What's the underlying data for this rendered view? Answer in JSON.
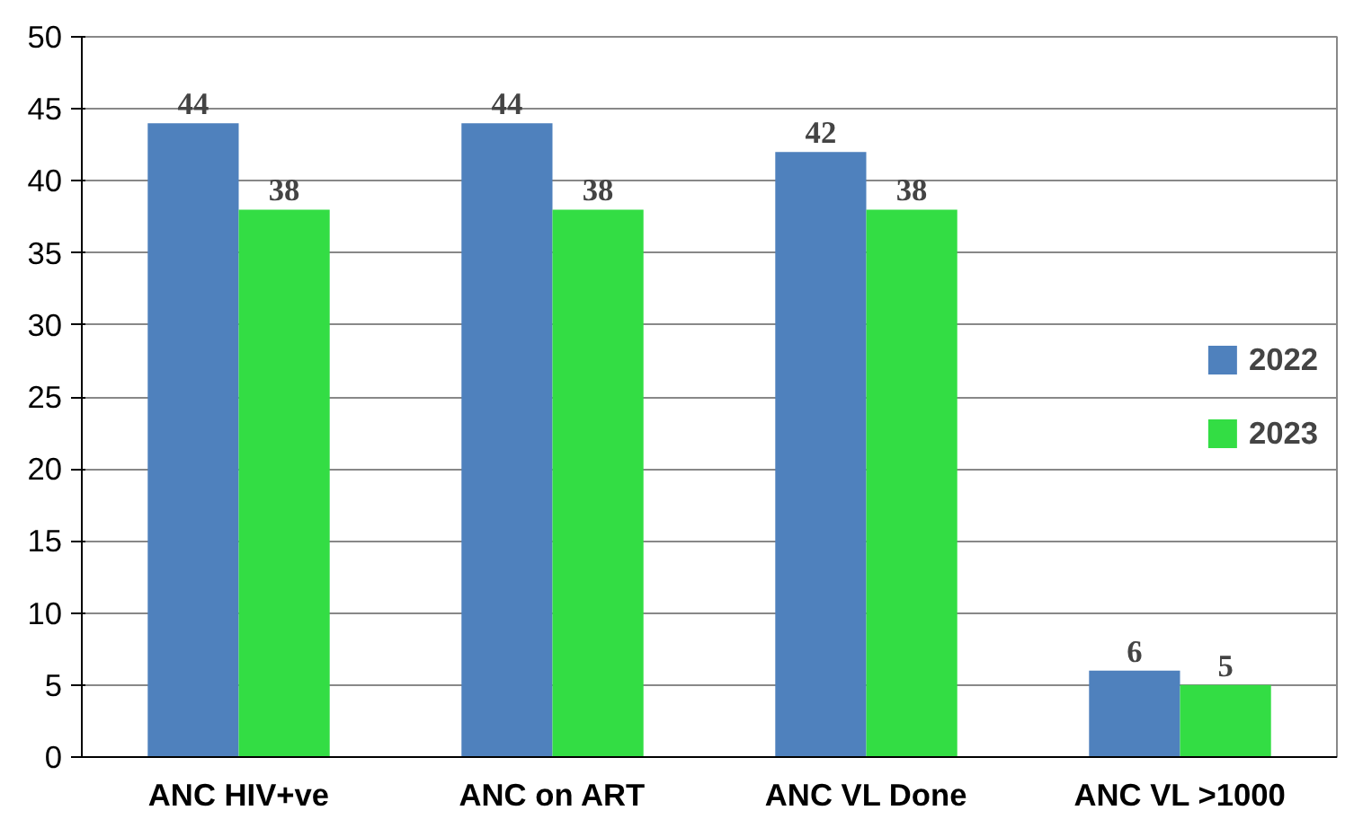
{
  "chart_data": {
    "type": "bar",
    "categories": [
      "ANC HIV+ve",
      "ANC on ART",
      "ANC VL Done",
      "ANC VL >1000"
    ],
    "series": [
      {
        "name": "2022",
        "color": "#4f81bd",
        "values": [
          44,
          44,
          42,
          6
        ]
      },
      {
        "name": "2023",
        "color": "#33dd44",
        "values": [
          38,
          38,
          38,
          5
        ]
      }
    ],
    "ylim": [
      0,
      50
    ],
    "yticks": [
      0,
      5,
      10,
      15,
      20,
      25,
      30,
      35,
      40,
      45,
      50
    ],
    "grid": "y",
    "legend": "right",
    "data_labels": true
  }
}
